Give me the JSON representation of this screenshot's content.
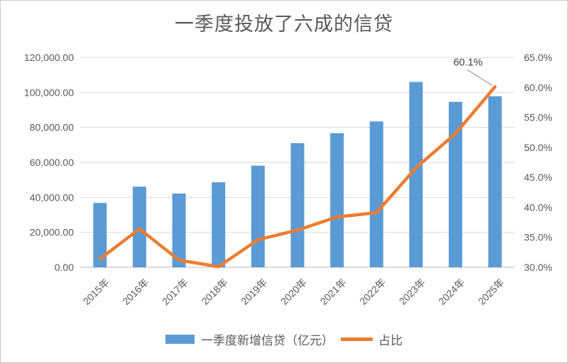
{
  "chart_data": {
    "type": "combo-bar-line",
    "title": "一季度投放了六成的信贷",
    "categories": [
      "2015年",
      "2016年",
      "2017年",
      "2018年",
      "2019年",
      "2020年",
      "2021年",
      "2022年",
      "2023年",
      "2024年",
      "2025年"
    ],
    "series": [
      {
        "name": "一季度新增信贷（亿元）",
        "type": "bar",
        "axis": "left",
        "color": "#5B9BD5",
        "values": [
          36800,
          46100,
          42200,
          48600,
          58100,
          71000,
          76700,
          83400,
          106000,
          94600,
          97800
        ]
      },
      {
        "name": "占比",
        "type": "line",
        "axis": "right",
        "color": "#ED7D31",
        "values": [
          31.4,
          36.4,
          31.2,
          30.1,
          34.6,
          36.2,
          38.4,
          39.1,
          46.6,
          52.3,
          60.1
        ]
      }
    ],
    "left_axis": {
      "min": 0,
      "max": 120000,
      "step": 20000,
      "tick_labels": [
        "0.00",
        "20,000.00",
        "40,000.00",
        "60,000.00",
        "80,000.00",
        "100,000.00",
        "120,000.00"
      ]
    },
    "right_axis": {
      "min": 30,
      "max": 65,
      "step": 5,
      "tick_labels": [
        "30.0%",
        "35.0%",
        "40.0%",
        "45.0%",
        "50.0%",
        "55.0%",
        "60.0%",
        "65.0%"
      ]
    },
    "annotation": {
      "text": "60.1%",
      "series": "占比",
      "category": "2025年"
    },
    "grid": true,
    "legend_position": "bottom"
  },
  "colors": {
    "bar": "#5B9BD5",
    "line": "#ED7D31",
    "gridline": "#D9D9D9",
    "axis_line": "#D0D0D0",
    "axis_text": "#595959",
    "title_text": "#595959",
    "annotation_text": "#404040",
    "leader_line": "#A6A6A6",
    "frame_border": "#C9C9C9",
    "background": "#FFFFFF"
  }
}
